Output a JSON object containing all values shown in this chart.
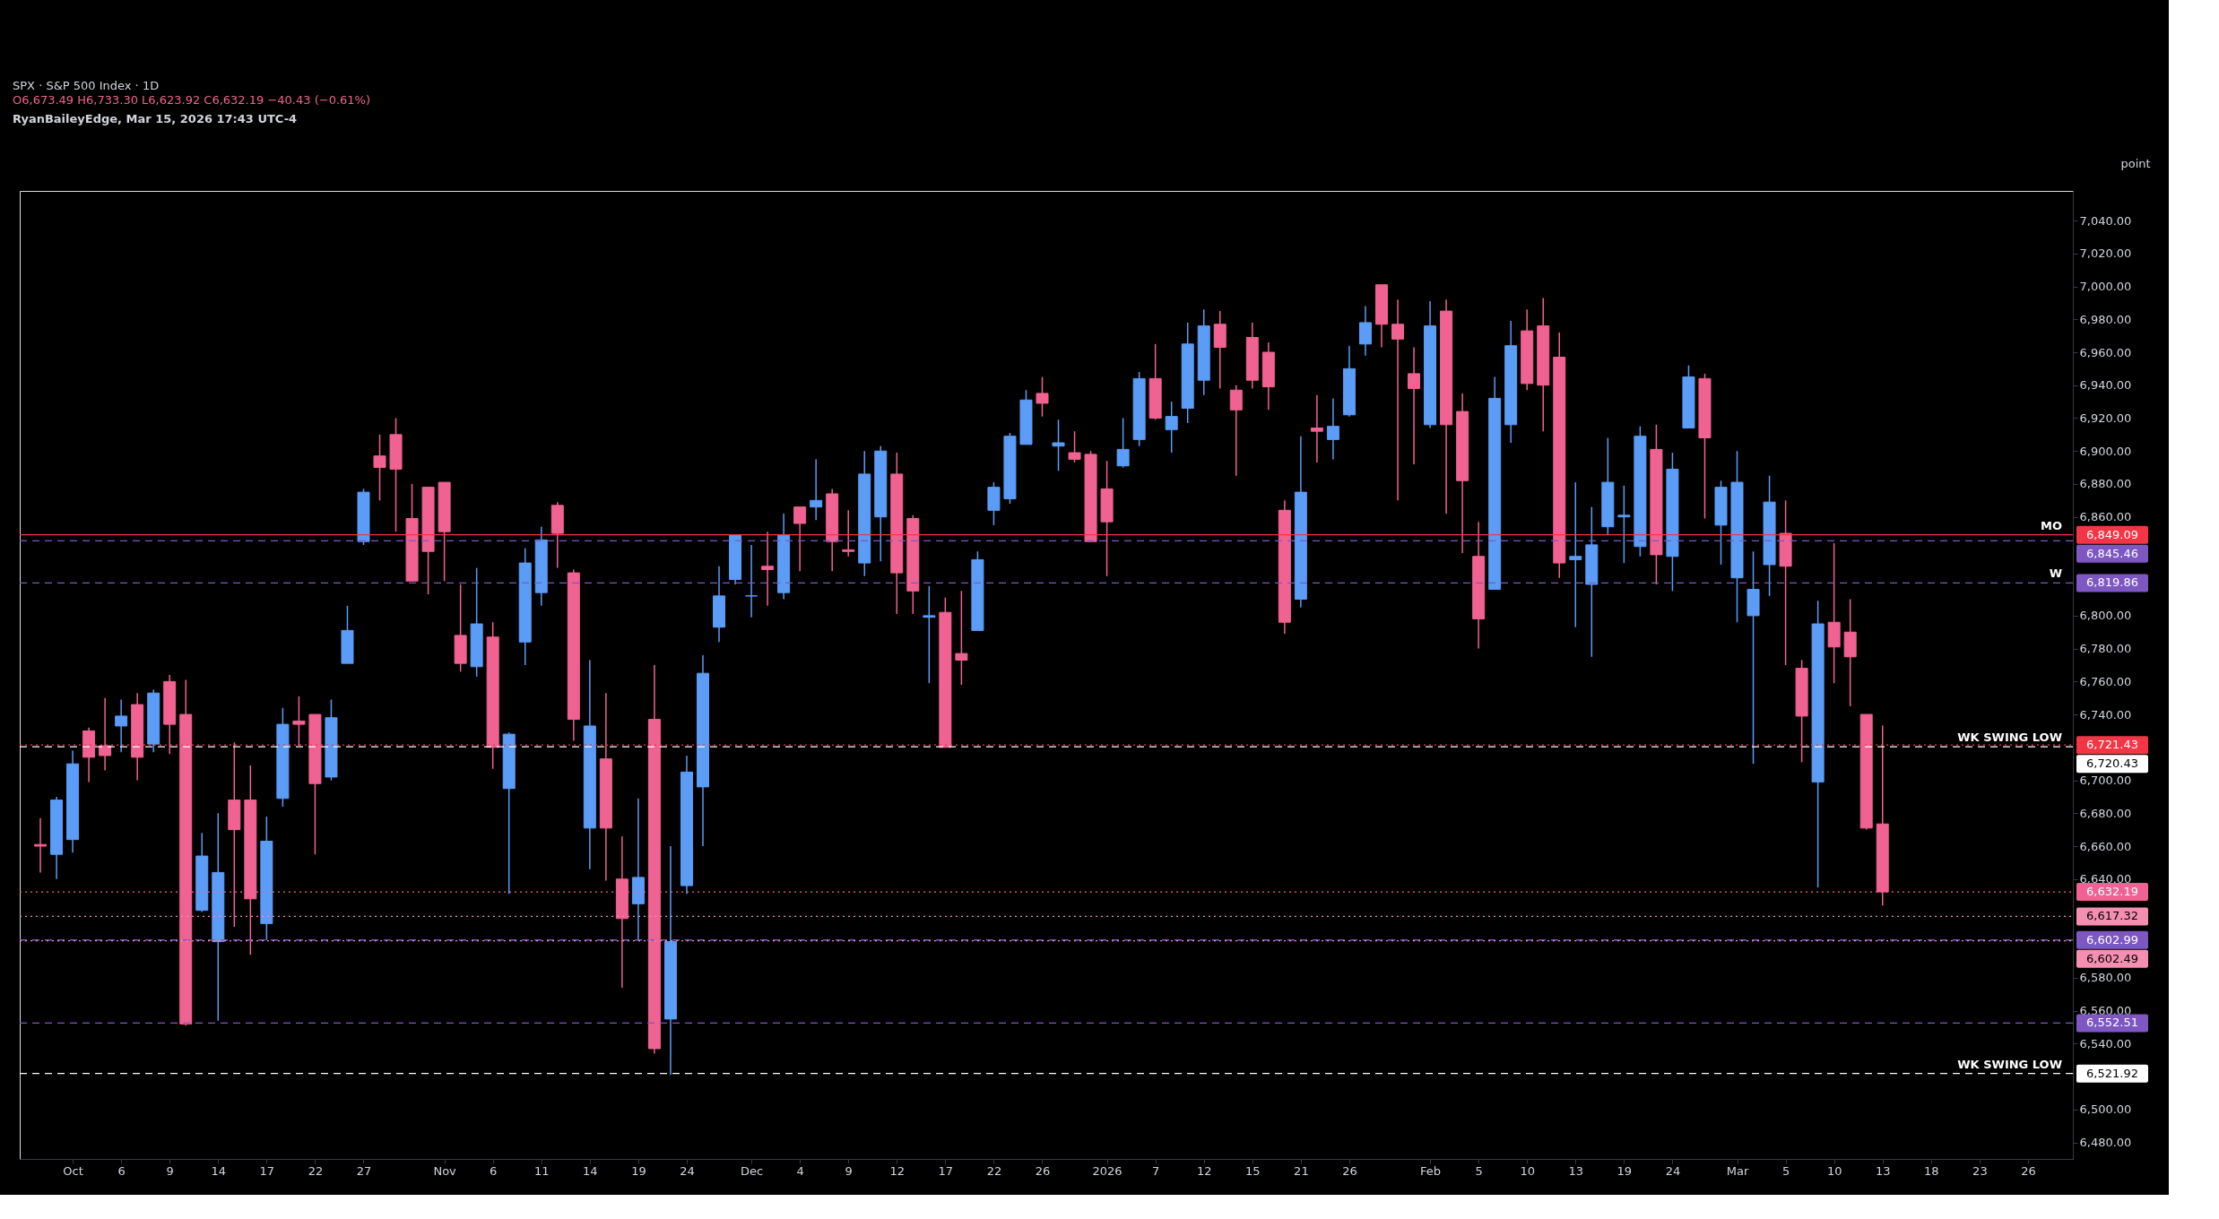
{
  "chart_data": {
    "type": "candlestick",
    "title": "SPX · S&P 500 Index · 1D",
    "subtitle": "O6,673.49 H6,733.30 L6,623.92 C6,632.19 −40.43 (−0.61%)",
    "annotations": [
      "RyanBaileyEdge, Mar 15, 2026 17:43 UTC-4",
      "point",
      "6,849.09",
      "6,845.46",
      "6,819.86",
      "6,721.43",
      "6,720.43",
      "6,632.19",
      "6,617.32",
      "6,602.99",
      "6,602.49",
      "6,552.51",
      "6,521.92"
    ],
    "categories": [
      null,
      null,
      "Oct",
      null,
      null,
      "6",
      null,
      null,
      "9",
      null,
      null,
      "14",
      null,
      null,
      "17",
      null,
      null,
      "22",
      null,
      null,
      "27",
      null,
      null,
      null,
      null,
      "Nov",
      null,
      null,
      "6",
      null,
      null,
      "11",
      null,
      null,
      "14",
      null,
      null,
      "19",
      null,
      null,
      "24",
      null,
      null,
      null,
      "Dec",
      null,
      null,
      "4",
      null,
      null,
      "9",
      null,
      null,
      "12",
      null,
      null,
      "17",
      null,
      null,
      "22",
      null,
      null,
      "26",
      null,
      null,
      null,
      "2026",
      null,
      null,
      "7",
      null,
      null,
      "12",
      null,
      null,
      "15",
      null,
      null,
      "21",
      null,
      null,
      "26",
      null,
      null,
      null,
      null,
      "Feb",
      null,
      null,
      "5",
      null,
      null,
      "10",
      null,
      null,
      "13",
      null,
      null,
      "19",
      null,
      null,
      "24",
      null,
      null,
      null,
      "Mar",
      null,
      null,
      "5",
      null,
      null,
      "10",
      null,
      null,
      "13",
      null,
      null,
      "18",
      null,
      null,
      "23",
      null,
      null,
      "26",
      null,
      null
    ],
    "ohlc": [
      [
        6661,
        6677,
        6644,
        6660
      ],
      [
        6655,
        6690,
        6640,
        6688
      ],
      [
        6664,
        6718,
        6656,
        6710
      ],
      [
        6730,
        6732,
        6699,
        6714
      ],
      [
        6721,
        6750,
        6706,
        6715
      ],
      [
        6733,
        6749,
        6717,
        6739
      ],
      [
        6746,
        6753,
        6700,
        6714
      ],
      [
        6722,
        6755,
        6717,
        6753
      ],
      [
        6760,
        6764,
        6716,
        6734
      ],
      [
        6740,
        6761,
        6551,
        6552
      ],
      [
        6621,
        6668,
        6620,
        6654
      ],
      [
        6602,
        6680,
        6554,
        6644
      ],
      [
        6688,
        6723,
        6611,
        6670
      ],
      [
        6688,
        6709,
        6594,
        6628
      ],
      [
        6613,
        6678,
        6603,
        6663
      ],
      [
        6689,
        6744,
        6684,
        6734
      ],
      [
        6736,
        6751,
        6721,
        6734
      ],
      [
        6740,
        6740,
        6655,
        6698
      ],
      [
        6702,
        6749,
        6700,
        6738
      ],
      [
        6771,
        6806,
        6771,
        6791
      ],
      [
        6845,
        6877,
        6843,
        6875
      ],
      [
        6897,
        6910,
        6870,
        6890
      ],
      [
        6910,
        6920,
        6851,
        6889
      ],
      [
        6859,
        6880,
        6821,
        6821
      ],
      [
        6878,
        6878,
        6813,
        6839
      ],
      [
        6881,
        6881,
        6821,
        6851
      ],
      [
        6788,
        6819,
        6766,
        6771
      ],
      [
        6769,
        6829,
        6763,
        6795
      ],
      [
        6787,
        6796,
        6707,
        6720
      ],
      [
        6695,
        6729,
        6631,
        6728
      ],
      [
        6784,
        6841,
        6770,
        6832
      ],
      [
        6814,
        6854,
        6806,
        6846
      ],
      [
        6867,
        6869,
        6829,
        6850
      ],
      [
        6826,
        6828,
        6724,
        6737
      ],
      [
        6671,
        6773,
        6646,
        6733
      ],
      [
        6713,
        6753,
        6639,
        6671
      ],
      [
        6640,
        6666,
        6574,
        6616
      ],
      [
        6625,
        6689,
        6603,
        6641
      ],
      [
        6737,
        6770,
        6534,
        6537
      ],
      [
        6555,
        6660,
        6521,
        6602
      ],
      [
        6636,
        6715,
        6631,
        6705
      ],
      [
        6696,
        6776,
        6660,
        6765
      ],
      [
        6793,
        6830,
        6784,
        6812
      ],
      [
        6822,
        6849,
        6819,
        6849
      ],
      [
        6812,
        6843,
        6799,
        6812
      ],
      [
        6830,
        6851,
        6806,
        6828
      ],
      [
        6814,
        6862,
        6810,
        6849
      ],
      [
        6866,
        6866,
        6827,
        6856
      ],
      [
        6866,
        6895,
        6858,
        6870
      ],
      [
        6874,
        6877,
        6827,
        6845
      ],
      [
        6840,
        6864,
        6836,
        6839
      ],
      [
        6832,
        6900,
        6824,
        6886
      ],
      [
        6860,
        6903,
        6833,
        6900
      ],
      [
        6886,
        6899,
        6801,
        6826
      ],
      [
        6859,
        6861,
        6801,
        6815
      ],
      [
        6799,
        6818,
        6759,
        6800
      ],
      [
        6802,
        6811,
        6720,
        6720
      ],
      [
        6777,
        6815,
        6758,
        6773
      ],
      [
        6791,
        6839,
        6791,
        6834
      ],
      [
        6864,
        6881,
        6855,
        6878
      ],
      [
        6871,
        6911,
        6868,
        6909
      ],
      [
        6904,
        6937,
        6904,
        6931
      ],
      [
        6935,
        6945,
        6921,
        6929
      ],
      [
        6903,
        6919,
        6888,
        6905
      ],
      [
        6899,
        6912,
        6893,
        6895
      ],
      [
        6898,
        6900,
        6845,
        6845
      ],
      [
        6877,
        6894,
        6824,
        6857
      ],
      [
        6891,
        6920,
        6890,
        6901
      ],
      [
        6907,
        6948,
        6903,
        6944
      ],
      [
        6944,
        6965,
        6919,
        6920
      ],
      [
        6913,
        6930,
        6899,
        6921
      ],
      [
        6926,
        6978,
        6917,
        6965
      ],
      [
        6943,
        6986,
        6934,
        6976
      ],
      [
        6977,
        6985,
        6938,
        6963
      ],
      [
        6937,
        6940,
        6885,
        6925
      ],
      [
        6969,
        6978,
        6938,
        6943
      ],
      [
        6960,
        6966,
        6925,
        6939
      ],
      [
        6864,
        6870,
        6789,
        6796
      ],
      [
        6810,
        6909,
        6805,
        6875
      ],
      [
        6914,
        6934,
        6893,
        6912
      ],
      [
        6907,
        6932,
        6895,
        6915
      ],
      [
        6922,
        6964,
        6921,
        6950
      ],
      [
        6965,
        6988,
        6958,
        6978
      ],
      [
        7001,
        7001,
        6963,
        6977
      ],
      [
        6977,
        6992,
        6870,
        6968
      ],
      [
        6947,
        6963,
        6892,
        6938
      ],
      [
        6916,
        6991,
        6914,
        6976
      ],
      [
        6985,
        6992,
        6862,
        6916
      ],
      [
        6924,
        6935,
        6838,
        6882
      ],
      [
        6836,
        6857,
        6780,
        6798
      ],
      [
        6816,
        6945,
        6816,
        6932
      ],
      [
        6916,
        6979,
        6905,
        6964
      ],
      [
        6973,
        6986,
        6937,
        6941
      ],
      [
        6976,
        6993,
        6912,
        6940
      ],
      [
        6957,
        6972,
        6823,
        6832
      ],
      [
        6834,
        6881,
        6793,
        6836
      ],
      [
        6819,
        6866,
        6775,
        6843
      ],
      [
        6854,
        6908,
        6849,
        6881
      ],
      [
        6860,
        6879,
        6832,
        6861
      ],
      [
        6842,
        6915,
        6836,
        6909
      ],
      [
        6901,
        6916,
        6819,
        6837
      ],
      [
        6836,
        6899,
        6815,
        6889
      ],
      [
        6914,
        6952,
        6914,
        6945
      ],
      [
        6944,
        6947,
        6859,
        6908
      ],
      [
        6855,
        6882,
        6831,
        6878
      ],
      [
        6823,
        6900,
        6796,
        6881
      ],
      [
        6800,
        6839,
        6710,
        6816
      ],
      [
        6831,
        6885,
        6812,
        6869
      ],
      [
        6850,
        6870,
        6770,
        6830
      ],
      [
        6768,
        6773,
        6711,
        6739
      ],
      [
        6699,
        6809,
        6635,
        6795
      ],
      [
        6796,
        6844,
        6759,
        6781
      ],
      [
        6790,
        6810,
        6745,
        6775
      ],
      [
        6740,
        6740,
        6670,
        6671
      ],
      [
        6673.49,
        6733.3,
        6623.92,
        6632.19
      ],
      null,
      null,
      null,
      null,
      null,
      null,
      null,
      null,
      null,
      null,
      null
    ],
    "colors": [
      "#f06292",
      "#5b9cf6",
      "#5b9cf6",
      "#f06292",
      "#f06292",
      "#5b9cf6",
      "#f06292",
      "#5b9cf6",
      "#f06292",
      "#f06292",
      "#5b9cf6",
      "#5b9cf6",
      "#f06292",
      "#f06292",
      "#5b9cf6",
      "#5b9cf6",
      "#f06292",
      "#f06292",
      "#5b9cf6",
      "#5b9cf6",
      "#5b9cf6",
      "#f06292",
      "#f06292",
      "#f06292",
      "#f06292",
      "#f06292",
      "#f06292",
      "#5b9cf6",
      "#f06292",
      "#5b9cf6",
      "#5b9cf6",
      "#5b9cf6",
      "#f06292",
      "#f06292",
      "#5b9cf6",
      "#f06292",
      "#f06292",
      "#5b9cf6",
      "#f06292",
      "#5b9cf6",
      "#5b9cf6",
      "#5b9cf6",
      "#5b9cf6",
      "#5b9cf6",
      "#5b9cf6",
      "#f06292",
      "#5b9cf6",
      "#f06292",
      "#5b9cf6",
      "#f06292",
      "#f06292",
      "#5b9cf6",
      "#5b9cf6",
      "#f06292",
      "#f06292",
      "#5b9cf6",
      "#f06292",
      "#f06292",
      "#5b9cf6",
      "#5b9cf6",
      "#5b9cf6",
      "#5b9cf6",
      "#f06292",
      "#5b9cf6",
      "#f06292",
      "#f06292",
      "#f06292",
      "#5b9cf6",
      "#5b9cf6",
      "#f06292",
      "#5b9cf6",
      "#5b9cf6",
      "#5b9cf6",
      "#f06292",
      "#f06292",
      "#f06292",
      "#f06292",
      "#f06292",
      "#5b9cf6",
      "#f06292",
      "#5b9cf6",
      "#5b9cf6",
      "#5b9cf6",
      "#f06292",
      "#f06292",
      "#f06292",
      "#5b9cf6",
      "#f06292",
      "#f06292",
      "#f06292",
      "#5b9cf6",
      "#5b9cf6",
      "#f06292",
      "#f06292",
      "#f06292",
      "#5b9cf6",
      "#5b9cf6",
      "#5b9cf6",
      "#5b9cf6",
      "#5b9cf6",
      "#f06292",
      "#5b9cf6",
      "#5b9cf6",
      "#f06292",
      "#5b9cf6",
      "#5b9cf6",
      "#5b9cf6",
      "#5b9cf6",
      "#f06292",
      "#f06292",
      "#5b9cf6",
      "#f06292",
      "#f06292",
      "#f06292",
      "#f06292",
      null,
      null,
      null,
      null,
      null,
      null,
      null,
      null,
      null,
      null,
      null
    ],
    "ylim": [
      6470,
      7058
    ],
    "yticks": [
      {
        "value": 6480,
        "label": "6,480.00"
      },
      {
        "value": 6500,
        "label": "6,500.00"
      },
      {
        "value": 6540,
        "label": "6,540.00"
      },
      {
        "value": 6560,
        "label": "6,560.00"
      },
      {
        "value": 6580,
        "label": "6,580.00"
      },
      {
        "value": 6640,
        "label": "6,640.00"
      },
      {
        "value": 6660,
        "label": "6,660.00"
      },
      {
        "value": 6680,
        "label": "6,680.00"
      },
      {
        "value": 6700,
        "label": "6,700.00"
      },
      {
        "value": 6740,
        "label": "6,740.00"
      },
      {
        "value": 6760,
        "label": "6,760.00"
      },
      {
        "value": 6780,
        "label": "6,780.00"
      },
      {
        "value": 6800,
        "label": "6,800.00"
      },
      {
        "value": 6860,
        "label": "6,860.00"
      },
      {
        "value": 6880,
        "label": "6,880.00"
      },
      {
        "value": 6900,
        "label": "6,900.00"
      },
      {
        "value": 6920,
        "label": "6,920.00"
      },
      {
        "value": 6940,
        "label": "6,940.00"
      },
      {
        "value": 6960,
        "label": "6,960.00"
      },
      {
        "value": 6980,
        "label": "6,980.00"
      },
      {
        "value": 7000,
        "label": "7,000.00"
      },
      {
        "value": 7020,
        "label": "7,020.00"
      },
      {
        "value": 7040,
        "label": "7,040.00"
      }
    ],
    "ref_lines": [
      {
        "axis": "y",
        "value": 6849.09,
        "label": "MO",
        "color": "#f23645",
        "line_style": "solid"
      },
      {
        "axis": "y",
        "value": 6845.46,
        "color": "#7e57c2",
        "line_style": "dashed"
      },
      {
        "axis": "y",
        "value": 6819.86,
        "label": "W",
        "color": "#7e57c2",
        "line_style": "dashed"
      },
      {
        "axis": "y",
        "value": 6721.43,
        "color": "#f23645",
        "line_style": "dotted"
      },
      {
        "axis": "y",
        "value": 6720.43,
        "label": "WK SWING LOW",
        "color": "#ffffff",
        "line_style": "dashed"
      },
      {
        "axis": "y",
        "value": 6632.19,
        "color": "#f06292",
        "line_style": "dotted"
      },
      {
        "axis": "y",
        "value": 6617.32,
        "color": "#f48fb1",
        "line_style": "dotted"
      },
      {
        "axis": "y",
        "value": 6602.99,
        "color": "#7e57c2",
        "line_style": "dashed"
      },
      {
        "axis": "y",
        "value": 6602.49,
        "color": "#f48fb1",
        "line_style": "dotted"
      },
      {
        "axis": "y",
        "value": 6552.51,
        "color": "#7e57c2",
        "line_style": "dashed"
      },
      {
        "axis": "y",
        "value": 6521.92,
        "label": "WK SWING LOW",
        "color": "#ffffff",
        "line_style": "dashed"
      }
    ],
    "grid": false
  }
}
